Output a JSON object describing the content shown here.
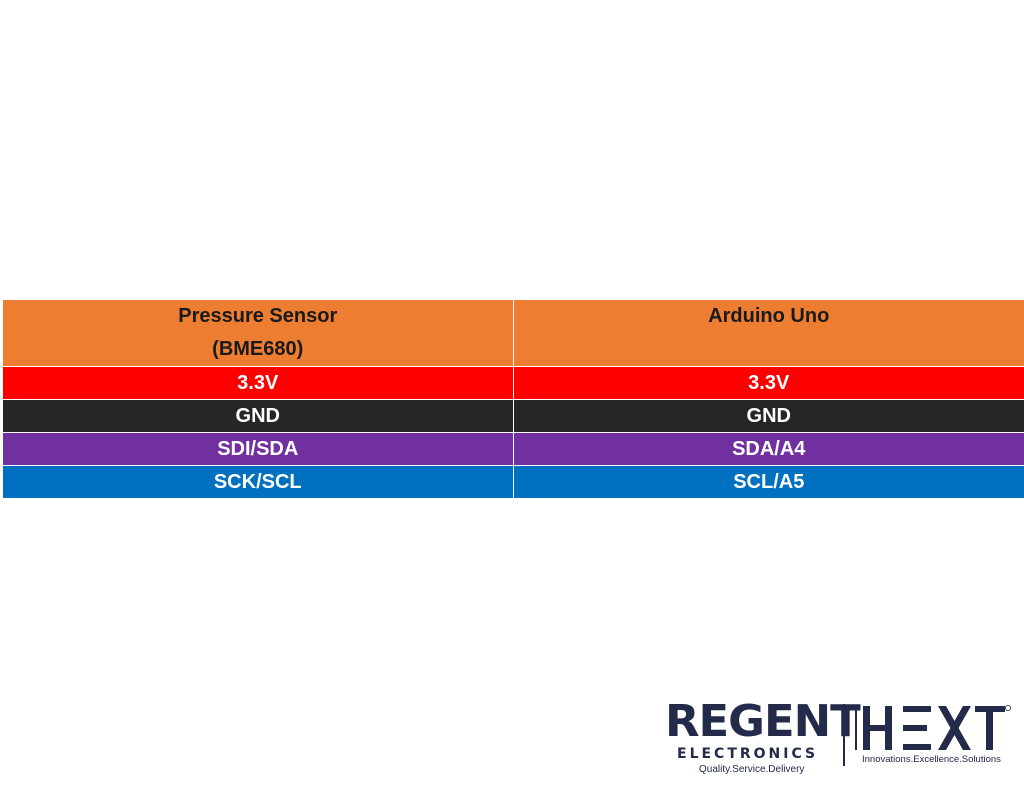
{
  "table": {
    "headers": [
      {
        "line1": "Pressure Sensor",
        "line2": "(BME680)"
      },
      {
        "line1": "Arduino Uno",
        "line2": ""
      }
    ],
    "header_color": "#ED7D31",
    "rows": [
      {
        "cells": [
          "3.3V",
          "3.3V"
        ],
        "color": "#FF0000"
      },
      {
        "cells": [
          "GND",
          "GND"
        ],
        "color": "#262626"
      },
      {
        "cells": [
          "SDI/SDA",
          "SDA/A4"
        ],
        "color": "#7030A0"
      },
      {
        "cells": [
          "SCK/SCL",
          "SCL/A5"
        ],
        "color": "#0070C0"
      }
    ]
  },
  "logo": {
    "regent": "REGENT",
    "electronics": "ELECTRONICS",
    "regent_tagline": "Quality.Service.Delivery",
    "hext": "HEXT",
    "hext_tagline": "Innovations.Excellence.Solutions",
    "color": "#232A4A"
  }
}
